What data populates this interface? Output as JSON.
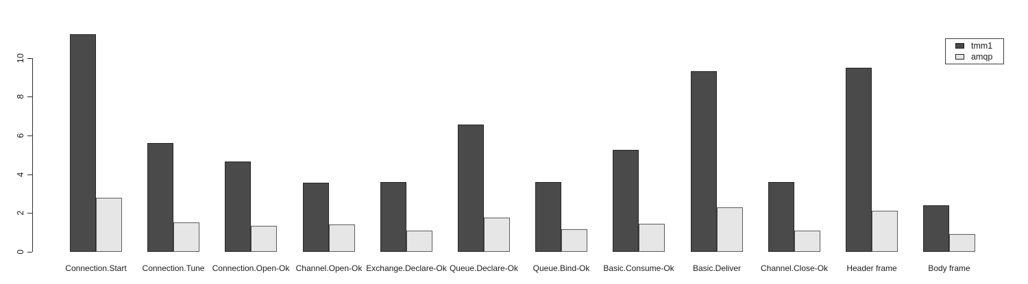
{
  "chart_data": {
    "type": "bar",
    "title": "",
    "xlabel": "",
    "ylabel": "",
    "categories": [
      "Connection.Start",
      "Connection.Tune",
      "Connection.Open-Ok",
      "Channel.Open-Ok",
      "Exchange.Declare-Ok",
      "Queue.Declare-Ok",
      "Queue.Bind-Ok",
      "Basic.Consume-Ok",
      "Basic.Deliver",
      "Channel.Close-Ok",
      "Header frame",
      "Body frame"
    ],
    "series": [
      {
        "name": "tmm1",
        "color": "#4a4a4a",
        "values": [
          11.2,
          5.6,
          4.65,
          3.55,
          3.6,
          6.55,
          3.6,
          5.25,
          9.3,
          3.6,
          9.5,
          2.4
        ]
      },
      {
        "name": "amqp",
        "color": "#e6e6e6",
        "values": [
          2.8,
          1.5,
          1.35,
          1.4,
          1.1,
          1.75,
          1.15,
          1.45,
          2.3,
          1.1,
          2.1,
          0.9
        ]
      }
    ],
    "yticks": [
      0,
      2,
      4,
      6,
      8,
      10
    ],
    "ylim": [
      0,
      11.6
    ],
    "grid": false,
    "legend_position": "top-right",
    "background": "#ffffff"
  }
}
